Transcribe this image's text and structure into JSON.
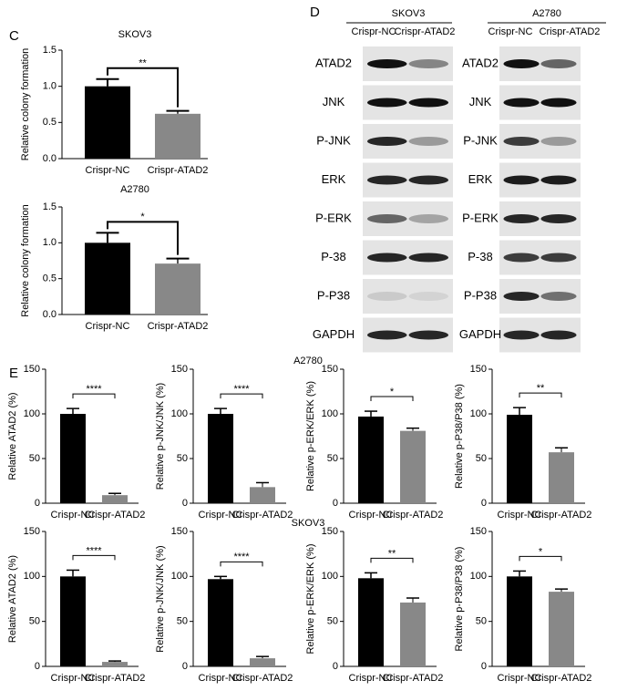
{
  "panel_labels": [
    "C",
    "D",
    "E"
  ],
  "row_headers": [
    "A2780",
    "SKOV3"
  ],
  "blot": {
    "groups": [
      {
        "name": "SKOV3",
        "lanes": [
          "Crispr-NC",
          "Crispr-ATAD2"
        ],
        "rows": [
          "ATAD2",
          "JNK",
          "P-JNK",
          "ERK",
          "P-ERK",
          "P-38",
          "P-P38",
          "GAPDH"
        ]
      },
      {
        "name": "A2780",
        "lanes": [
          "Crispr-NC",
          "Crispr-ATAD2"
        ],
        "rows": [
          "ATAD2",
          "JNK",
          "P-JNK",
          "ERK",
          "P-ERK",
          "P-38",
          "P-P38",
          "GAPDH"
        ]
      }
    ]
  },
  "chart_data": [
    {
      "type": "bar",
      "title": "SKOV3",
      "ylabel": "Relative colony formation",
      "categories": [
        "Crispr-NC",
        "Crispr-ATAD2"
      ],
      "values": [
        1.0,
        0.62
      ],
      "errors": [
        0.1,
        0.04
      ],
      "colors": [
        "#000000",
        "#888888"
      ],
      "ylim": [
        0,
        1.5
      ],
      "yticks": [
        {
          "value": 0,
          "label": "0.0"
        },
        0.5,
        {
          "value": 1,
          "label": "1.0"
        },
        1.5
      ],
      "significance": "**"
    },
    {
      "type": "bar",
      "title": "A2780",
      "ylabel": "Relative colony formation",
      "categories": [
        "Crispr-NC",
        "Crispr-ATAD2"
      ],
      "values": [
        1.0,
        0.71
      ],
      "errors": [
        0.14,
        0.07
      ],
      "colors": [
        "#000000",
        "#888888"
      ],
      "ylim": [
        0,
        1.5
      ],
      "yticks": [
        {
          "value": 0,
          "label": "0.0"
        },
        0.5,
        {
          "value": 1,
          "label": "1.0"
        },
        1.5
      ],
      "significance": "*"
    },
    {
      "type": "bar",
      "ylabel": "Relative ATAD2 (%)",
      "categories": [
        "Crispr-NC",
        "Crispr-ATAD2"
      ],
      "values": [
        100,
        9
      ],
      "errors": [
        6,
        2
      ],
      "colors": [
        "#000000",
        "#888888"
      ],
      "ylim": [
        0,
        150
      ],
      "yticks": [
        0,
        50,
        100,
        150
      ],
      "significance": "****"
    },
    {
      "type": "bar",
      "ylabel": "Relative p-JNK/JNK (%)",
      "categories": [
        "Crispr-NC",
        "Crispr-ATAD2"
      ],
      "values": [
        100,
        18
      ],
      "errors": [
        6,
        5
      ],
      "colors": [
        "#000000",
        "#888888"
      ],
      "ylim": [
        0,
        150
      ],
      "yticks": [
        0,
        50,
        100,
        150
      ],
      "significance": "****"
    },
    {
      "type": "bar",
      "ylabel": "Relative p-ERK/ERK (%)",
      "categories": [
        "Crispr-NC",
        "Crispr-ATAD2"
      ],
      "values": [
        97,
        81
      ],
      "errors": [
        6,
        3
      ],
      "colors": [
        "#000000",
        "#888888"
      ],
      "ylim": [
        0,
        150
      ],
      "yticks": [
        0,
        50,
        100,
        150
      ],
      "significance": "*"
    },
    {
      "type": "bar",
      "ylabel": "Relative p-P38/P38 (%)",
      "categories": [
        "Crispr-NC",
        "Crispr-ATAD2"
      ],
      "values": [
        99,
        57
      ],
      "errors": [
        8,
        5
      ],
      "colors": [
        "#000000",
        "#888888"
      ],
      "ylim": [
        0,
        150
      ],
      "yticks": [
        0,
        50,
        100,
        150
      ],
      "significance": "**"
    },
    {
      "type": "bar",
      "ylabel": "Relative ATAD2 (%)",
      "categories": [
        "Crispr-NC",
        "Crispr-ATAD2"
      ],
      "values": [
        100,
        5
      ],
      "errors": [
        7,
        1
      ],
      "colors": [
        "#000000",
        "#888888"
      ],
      "ylim": [
        0,
        150
      ],
      "yticks": [
        0,
        50,
        100,
        150
      ],
      "significance": "****"
    },
    {
      "type": "bar",
      "ylabel": "Relative p-JNK/JNK (%)",
      "categories": [
        "Crispr-NC",
        "Crispr-ATAD2"
      ],
      "values": [
        97,
        9
      ],
      "errors": [
        3,
        2
      ],
      "colors": [
        "#000000",
        "#888888"
      ],
      "ylim": [
        0,
        150
      ],
      "yticks": [
        0,
        50,
        100,
        150
      ],
      "significance": "****"
    },
    {
      "type": "bar",
      "ylabel": "Relative p-ERK/ERK (%)",
      "categories": [
        "Crispr-NC",
        "Crispr-ATAD2"
      ],
      "values": [
        98,
        71
      ],
      "errors": [
        6,
        5
      ],
      "colors": [
        "#000000",
        "#888888"
      ],
      "ylim": [
        0,
        150
      ],
      "yticks": [
        0,
        50,
        100,
        150
      ],
      "significance": "**"
    },
    {
      "type": "bar",
      "ylabel": "Relative p-P38/P38 (%)",
      "categories": [
        "Crispr-NC",
        "Crispr-ATAD2"
      ],
      "values": [
        100,
        83
      ],
      "errors": [
        6,
        3
      ],
      "colors": [
        "#000000",
        "#888888"
      ],
      "ylim": [
        0,
        150
      ],
      "yticks": [
        0,
        50,
        100,
        150
      ],
      "significance": "*"
    }
  ]
}
